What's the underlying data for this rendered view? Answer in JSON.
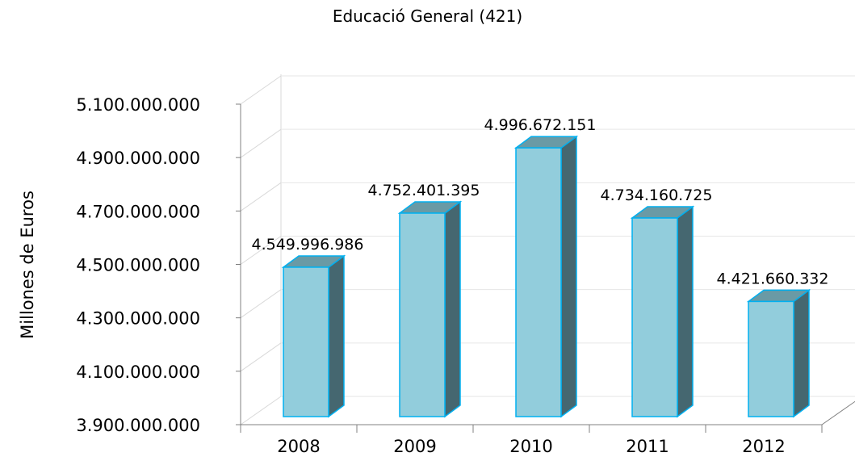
{
  "chart_data": {
    "type": "bar",
    "title": "Educació General (421)",
    "ylabel": "Millones de Euros",
    "xlabel": "",
    "categories": [
      "2008",
      "2009",
      "2010",
      "2011",
      "2012"
    ],
    "values": [
      4549996986,
      4752401395,
      4996672151,
      4734160725,
      4421660332
    ],
    "data_labels": [
      "4.549.996.986",
      "4.752.401.395",
      "4.996.672.151",
      "4.734.160.725",
      "4.421.660.332"
    ],
    "ylim": [
      3900000000,
      5100000000
    ],
    "yticks": [
      3900000000,
      4100000000,
      4300000000,
      4500000000,
      4700000000,
      4900000000,
      5100000000
    ],
    "ytick_labels": [
      "3.900.000.000",
      "4.100.000.000",
      "4.300.000.000",
      "4.500.000.000",
      "4.700.000.000",
      "4.900.000.000",
      "5.100.000.000"
    ],
    "grid": true,
    "style": "3d-column",
    "colors": {
      "bar_face": "#92CDDC",
      "bar_edge": "#00B0F0",
      "bar_top": "#6A9AA5",
      "bar_side": "#456770",
      "grid": "#D9D9D9",
      "axis": "#808080"
    }
  }
}
